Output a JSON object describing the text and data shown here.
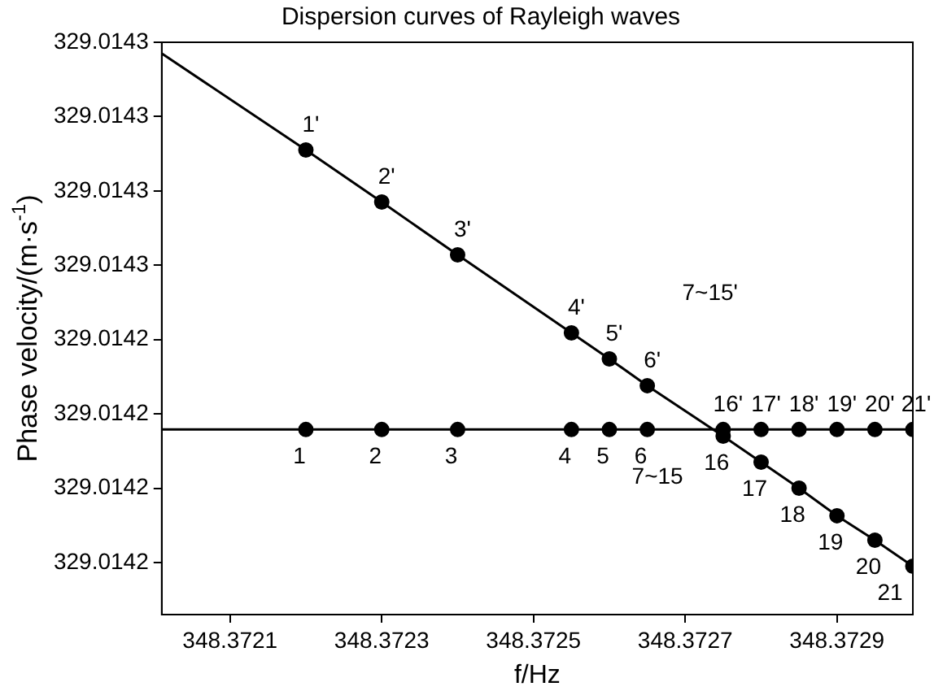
{
  "chart_data": {
    "type": "line",
    "title": "Dispersion curves of Rayleigh waves",
    "xlabel": "f/Hz",
    "ylabel": "Phase velocity/(m·s$^{-1}$)",
    "x": [
      348.37201,
      348.3722,
      348.3723,
      348.3724,
      348.37255,
      348.3726,
      348.37265,
      348.37275,
      348.3728,
      348.37285,
      348.3729,
      348.37295,
      348.373
    ],
    "series": [
      {
        "color": "#000000",
        "values": [
          329.0142785,
          329.0142655,
          329.0142585,
          329.0142514,
          329.0142409,
          329.0142374,
          329.0142338,
          329.014227,
          329.0142235,
          329.01422,
          329.0142163,
          329.014213,
          329.0142095
        ]
      },
      {
        "color": "#000000",
        "values": [
          329.0142279,
          329.0142279,
          329.0142279,
          329.0142279,
          329.0142279,
          329.0142279,
          329.0142279,
          329.0142279,
          329.0142279,
          329.0142279,
          329.0142279,
          329.0142279,
          329.0142279
        ]
      }
    ],
    "annotations": [
      "7~15'",
      "7~15",
      {
        "text": "1'",
        "x": 348.3722,
        "y": 329.0142655
      },
      {
        "text": "2'",
        "x": 348.3723,
        "y": 329.0142585
      },
      {
        "text": "3'",
        "x": 348.3724,
        "y": 329.0142514
      },
      {
        "text": "4'",
        "x": 348.37255,
        "y": 329.0142409
      },
      {
        "text": "5'",
        "x": 348.3726,
        "y": 329.0142374
      },
      {
        "text": "6'",
        "x": 348.37265,
        "y": 329.0142338
      },
      {
        "text": "16",
        "x": 348.37275,
        "y": 329.014227
      },
      {
        "text": "17",
        "x": 348.3728,
        "y": 329.0142235
      },
      {
        "text": "18",
        "x": 348.37285,
        "y": 329.01422
      },
      {
        "text": "19",
        "x": 348.3729,
        "y": 329.0142163
      },
      {
        "text": "20",
        "x": 348.37295,
        "y": 329.014213
      },
      {
        "text": "21",
        "x": 348.373,
        "y": 329.0142095
      },
      {
        "text": "1",
        "x": 348.3722,
        "y": 329.0142279
      },
      {
        "text": "2",
        "x": 348.3723,
        "y": 329.0142279
      },
      {
        "text": "3",
        "x": 348.3724,
        "y": 329.0142279
      },
      {
        "text": "4",
        "x": 348.37255,
        "y": 329.0142279
      },
      {
        "text": "5",
        "x": 348.3726,
        "y": 329.0142279
      },
      {
        "text": "6",
        "x": 348.37265,
        "y": 329.0142279
      },
      {
        "text": "16'",
        "x": 348.37275,
        "y": 329.0142279
      },
      {
        "text": "17'",
        "x": 348.3728,
        "y": 329.0142279
      },
      {
        "text": "18'",
        "x": 348.37285,
        "y": 329.0142279
      },
      {
        "text": "19'",
        "x": 348.3729,
        "y": 329.0142279
      },
      {
        "text": "20'",
        "x": 348.37295,
        "y": 329.0142279
      },
      {
        "text": "21'",
        "x": 348.373,
        "y": 329.0142279
      }
    ],
    "xlim": [
      348.37201,
      348.373
    ],
    "xticks": [
      348.3721,
      348.3723,
      348.3725,
      348.3727,
      348.3729
    ],
    "ylim": [
      329.014203,
      329.01428
    ],
    "yticks": [
      {
        "value": 329.01428,
        "label": "329.0143"
      },
      {
        "value": 329.01427,
        "label": "329.0143"
      },
      {
        "value": 329.01426,
        "label": "329.0143"
      },
      {
        "value": 329.01425,
        "label": "329.0143"
      },
      {
        "value": 329.01424,
        "label": "329.0142"
      },
      {
        "value": 329.01423,
        "label": "329.0142"
      },
      {
        "value": 329.01422,
        "label": "329.0142"
      },
      {
        "value": 329.01421,
        "label": "329.0142"
      }
    ],
    "grid": false,
    "legend": false,
    "marker": "circle",
    "line_style": "solid"
  }
}
